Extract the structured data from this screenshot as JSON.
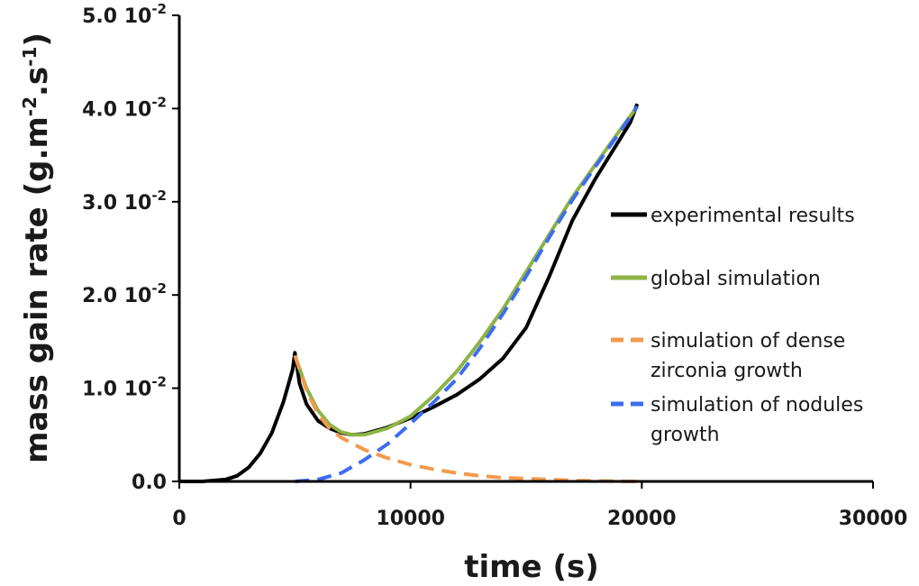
{
  "chart_data": {
    "type": "line",
    "xlabel": "time (s)",
    "ylabel": "mass gain rate (g.m",
    "ylabel_sup1": "-2",
    "ylabel_mid": ".s",
    "ylabel_sup2": "-1",
    "ylabel_end": ")",
    "xlim": [
      0,
      30000
    ],
    "ylim": [
      0,
      0.05
    ],
    "xticks": [
      0,
      10000,
      20000,
      30000
    ],
    "xtick_labels": [
      "0",
      "10000",
      "20000",
      "30000"
    ],
    "yticks": [
      0.0,
      0.01,
      0.02,
      0.03,
      0.04,
      0.05
    ],
    "ytick_labels": [
      {
        "base": "0.0",
        "exp": ""
      },
      {
        "base": "1.0 10",
        "exp": "-2"
      },
      {
        "base": "2.0 10",
        "exp": "-2"
      },
      {
        "base": "3.0 10",
        "exp": "-2"
      },
      {
        "base": "4.0 10",
        "exp": "-2"
      },
      {
        "base": "5.0 10",
        "exp": "-2"
      }
    ],
    "grid": false,
    "legend_position": "right",
    "series": [
      {
        "name": "experimental results",
        "color": "#000000",
        "dash": "solid",
        "x": [
          0,
          1000,
          2000,
          2500,
          3000,
          3500,
          4000,
          4500,
          4900,
          5000,
          5200,
          5500,
          6000,
          6500,
          7000,
          7500,
          8000,
          9000,
          10000,
          11000,
          12000,
          13000,
          14000,
          15000,
          16000,
          17000,
          18000,
          19000,
          19500,
          19700,
          19800
        ],
        "y": [
          0.0,
          0.0,
          0.0002,
          0.0006,
          0.0015,
          0.003,
          0.0052,
          0.0085,
          0.012,
          0.0138,
          0.0105,
          0.0083,
          0.0065,
          0.0057,
          0.0052,
          0.005,
          0.0051,
          0.0058,
          0.0068,
          0.008,
          0.0093,
          0.011,
          0.0132,
          0.0165,
          0.022,
          0.028,
          0.0325,
          0.0365,
          0.0385,
          0.0398,
          0.0405
        ]
      },
      {
        "name": "global simulation",
        "color": "#8db444",
        "dash": "solid",
        "x": [
          5000,
          5500,
          6000,
          6500,
          7000,
          7500,
          8000,
          9000,
          10000,
          11000,
          12000,
          13000,
          14000,
          15000,
          16000,
          17000,
          18000,
          19000,
          19800
        ],
        "y": [
          0.0135,
          0.01,
          0.0076,
          0.0061,
          0.0053,
          0.005,
          0.005,
          0.0057,
          0.007,
          0.0092,
          0.0118,
          0.015,
          0.0185,
          0.0225,
          0.0265,
          0.0305,
          0.034,
          0.0375,
          0.0402
        ]
      },
      {
        "name": "simulation of dense zirconia growth",
        "label_lines": [
          "simulation of dense",
          "zirconia growth"
        ],
        "color": "#f39a4c",
        "dash": "dashed",
        "x": [
          5000,
          5500,
          6000,
          6500,
          7000,
          8000,
          9000,
          10000,
          11000,
          12000,
          13000,
          14000,
          15000,
          16000,
          17000,
          18000,
          19000,
          20000
        ],
        "y": [
          0.0135,
          0.0098,
          0.0072,
          0.0057,
          0.0047,
          0.0034,
          0.0025,
          0.0018,
          0.0013,
          0.0009,
          0.0006,
          0.0004,
          0.0003,
          0.0002,
          0.0001,
          5e-05,
          2e-05,
          0.0
        ]
      },
      {
        "name": "simulation of nodules growth",
        "label_lines": [
          "simulation of nodules",
          "growth"
        ],
        "color": "#3d6cf0",
        "dash": "dashed",
        "x": [
          5000,
          6000,
          7000,
          8000,
          9000,
          10000,
          11000,
          12000,
          13000,
          14000,
          15000,
          16000,
          17000,
          18000,
          19000,
          19800
        ],
        "y": [
          0.0,
          0.0002,
          0.0009,
          0.0023,
          0.004,
          0.0062,
          0.0085,
          0.011,
          0.0143,
          0.018,
          0.022,
          0.0262,
          0.0302,
          0.0338,
          0.0373,
          0.0402
        ]
      }
    ]
  }
}
